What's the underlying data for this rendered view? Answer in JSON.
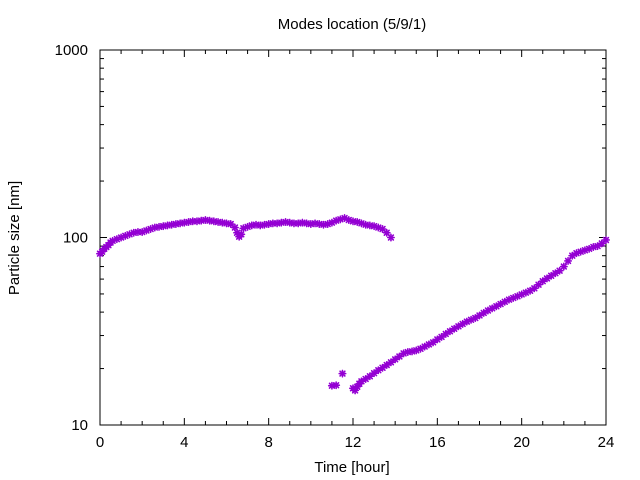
{
  "chart_data": {
    "type": "scatter",
    "title": "Modes location (5/9/1)",
    "xlabel": "Time [hour]",
    "ylabel": "Particle size [nm]",
    "xlim": [
      0,
      24
    ],
    "ylim": [
      10,
      1000
    ],
    "yscale": "log",
    "grid": false,
    "legend": "none",
    "x_ticks": [
      0,
      4,
      8,
      12,
      16,
      20,
      24
    ],
    "x_tick_labels": [
      "0",
      "4",
      "8",
      "12",
      "16",
      "20",
      "24"
    ],
    "y_ticks": [
      10,
      100,
      1000
    ],
    "y_tick_labels": [
      "10",
      "100",
      "1000"
    ],
    "marker": "asterisk",
    "color": "#9400d3",
    "series": [
      {
        "points": [
          [
            0.0,
            82
          ],
          [
            0.1,
            84
          ],
          [
            0.2,
            87
          ],
          [
            0.3,
            89
          ],
          [
            0.4,
            91
          ],
          [
            0.5,
            94
          ],
          [
            0.6,
            96
          ],
          [
            0.8,
            98
          ],
          [
            1.0,
            100
          ],
          [
            1.2,
            102
          ],
          [
            1.4,
            104
          ],
          [
            1.6,
            106
          ],
          [
            1.8,
            107
          ],
          [
            2.0,
            107
          ],
          [
            2.2,
            109
          ],
          [
            2.4,
            111
          ],
          [
            2.6,
            113
          ],
          [
            2.8,
            114
          ],
          [
            3.0,
            115
          ],
          [
            3.2,
            116
          ],
          [
            3.4,
            117
          ],
          [
            3.6,
            118
          ],
          [
            3.8,
            119
          ],
          [
            4.0,
            120
          ],
          [
            4.2,
            121
          ],
          [
            4.4,
            122
          ],
          [
            4.6,
            122
          ],
          [
            4.8,
            123
          ],
          [
            5.0,
            124
          ],
          [
            5.2,
            123
          ],
          [
            5.4,
            122
          ],
          [
            5.6,
            121
          ],
          [
            5.8,
            120
          ],
          [
            6.0,
            119
          ],
          [
            6.2,
            118
          ],
          [
            6.4,
            113
          ],
          [
            6.5,
            106
          ],
          [
            6.6,
            101
          ],
          [
            6.7,
            104
          ],
          [
            6.8,
            112
          ],
          [
            7.0,
            114
          ],
          [
            7.2,
            116
          ],
          [
            7.4,
            117
          ],
          [
            7.6,
            116
          ],
          [
            7.8,
            117
          ],
          [
            8.0,
            118
          ],
          [
            8.2,
            119
          ],
          [
            8.4,
            119
          ],
          [
            8.6,
            120
          ],
          [
            8.8,
            121
          ],
          [
            9.0,
            120
          ],
          [
            9.2,
            119
          ],
          [
            9.4,
            119
          ],
          [
            9.6,
            120
          ],
          [
            9.8,
            119
          ],
          [
            10.0,
            118
          ],
          [
            10.2,
            119
          ],
          [
            10.4,
            118
          ],
          [
            10.6,
            117
          ],
          [
            10.8,
            118
          ],
          [
            11.0,
            120
          ],
          [
            11.2,
            123
          ],
          [
            11.4,
            125
          ],
          [
            11.6,
            127
          ],
          [
            11.8,
            124
          ],
          [
            12.0,
            122
          ],
          [
            12.2,
            121
          ],
          [
            12.4,
            119
          ],
          [
            12.6,
            117
          ],
          [
            12.8,
            116
          ],
          [
            13.0,
            115
          ],
          [
            13.2,
            113
          ],
          [
            13.4,
            111
          ],
          [
            13.6,
            106
          ],
          [
            13.8,
            100
          ]
        ]
      },
      {
        "points": [
          [
            11.0,
            16.2
          ],
          [
            11.2,
            16.3
          ],
          [
            11.5,
            18.8
          ],
          [
            12.0,
            15.7
          ],
          [
            12.1,
            15.3
          ],
          [
            12.2,
            16.0
          ],
          [
            12.3,
            16.6
          ],
          [
            12.4,
            17.1
          ],
          [
            12.6,
            17.6
          ],
          [
            12.8,
            18.2
          ],
          [
            13.0,
            18.9
          ],
          [
            13.2,
            19.6
          ],
          [
            13.4,
            20.2
          ],
          [
            13.6,
            20.9
          ],
          [
            13.8,
            21.6
          ],
          [
            14.0,
            22.4
          ],
          [
            14.2,
            23.2
          ],
          [
            14.4,
            24.1
          ],
          [
            14.6,
            24.5
          ],
          [
            14.8,
            24.7
          ],
          [
            15.0,
            25.0
          ],
          [
            15.2,
            25.5
          ],
          [
            15.4,
            26.2
          ],
          [
            15.6,
            26.9
          ],
          [
            15.8,
            27.6
          ],
          [
            16.0,
            28.6
          ],
          [
            16.2,
            29.5
          ],
          [
            16.4,
            30.6
          ],
          [
            16.6,
            31.6
          ],
          [
            16.8,
            32.6
          ],
          [
            17.0,
            33.6
          ],
          [
            17.2,
            34.6
          ],
          [
            17.4,
            35.6
          ],
          [
            17.6,
            36.4
          ],
          [
            17.8,
            37.2
          ],
          [
            18.0,
            38.4
          ],
          [
            18.2,
            39.6
          ],
          [
            18.4,
            40.8
          ],
          [
            18.6,
            41.9
          ],
          [
            18.8,
            43.0
          ],
          [
            19.0,
            44.2
          ],
          [
            19.2,
            45.4
          ],
          [
            19.4,
            46.6
          ],
          [
            19.6,
            47.6
          ],
          [
            19.8,
            48.6
          ],
          [
            20.0,
            49.7
          ],
          [
            20.2,
            50.8
          ],
          [
            20.4,
            52.0
          ],
          [
            20.6,
            53.6
          ],
          [
            20.8,
            56.0
          ],
          [
            21.0,
            58.5
          ],
          [
            21.2,
            60.5
          ],
          [
            21.4,
            62.5
          ],
          [
            21.6,
            64.5
          ],
          [
            21.8,
            66.5
          ],
          [
            22.0,
            70.0
          ],
          [
            22.2,
            75.0
          ],
          [
            22.4,
            80.0
          ],
          [
            22.6,
            82.5
          ],
          [
            22.8,
            84.0
          ],
          [
            23.0,
            85.5
          ],
          [
            23.2,
            87.0
          ],
          [
            23.4,
            89.0
          ],
          [
            23.6,
            90.0
          ],
          [
            23.8,
            93.0
          ],
          [
            24.0,
            97.0
          ]
        ]
      }
    ]
  }
}
